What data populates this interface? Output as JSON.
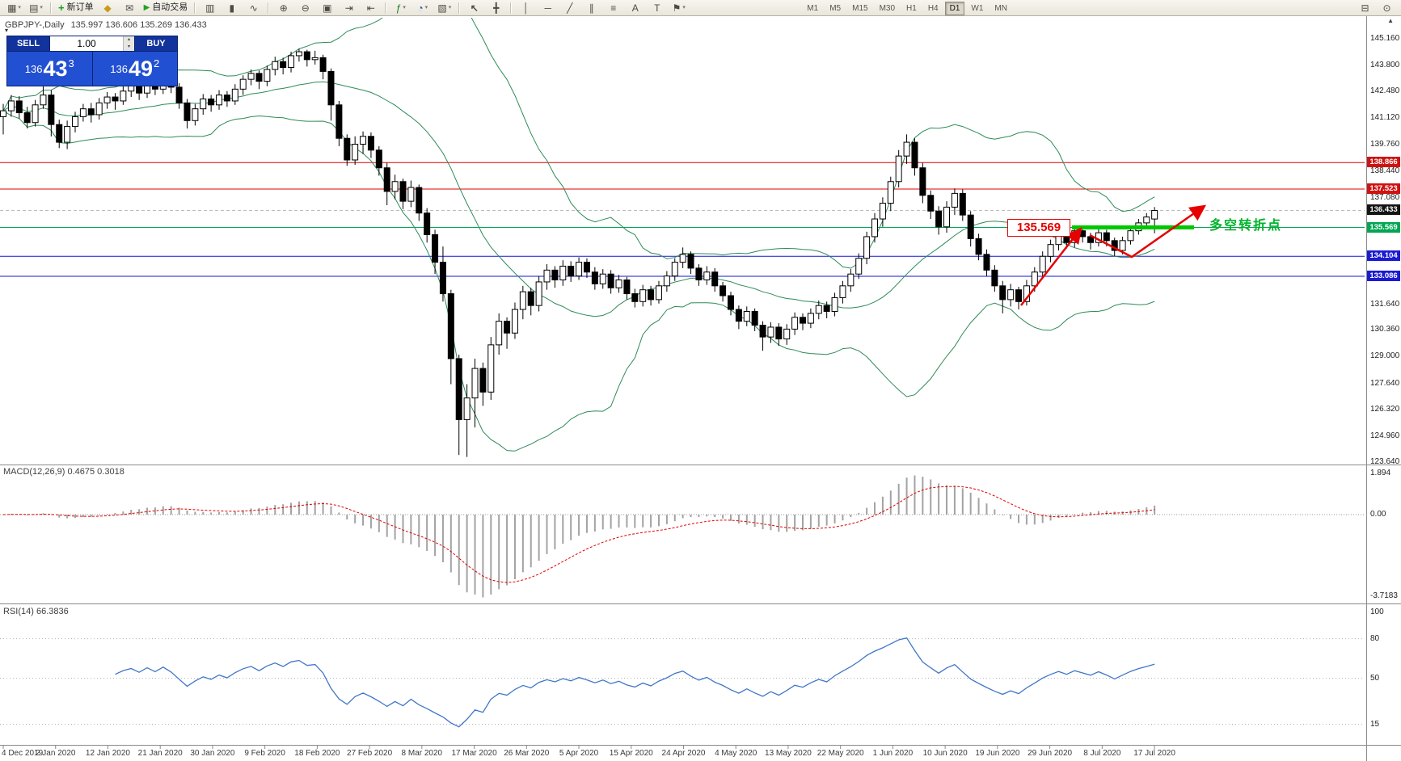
{
  "toolbar": {
    "new_order_label": "新订单",
    "autotrade_label": "自动交易",
    "timeframes": [
      "M1",
      "M5",
      "M15",
      "M30",
      "H1",
      "H4",
      "D1",
      "W1",
      "MN"
    ],
    "active_timeframe": "D1"
  },
  "icons": {
    "new_chart": "▦",
    "profiles": "▤",
    "dropdown": "▾",
    "new_order": "+",
    "market_watch": "◆",
    "alerts": "✉",
    "autotrade_play": "▶",
    "bar_chart": "▥",
    "candle_chart": "▮",
    "line_chart": "∿",
    "zoom_in": "⊕",
    "zoom_out": "⊖",
    "tile_windows": "▣",
    "auto_scroll": "⇥",
    "chart_shift": "⇤",
    "indicators": "ƒ",
    "periods": "◔",
    "templates": "▧",
    "cursor": "↖",
    "crosshair": "╋",
    "vertical_line": "│",
    "horizontal_line": "─",
    "trendline": "╱",
    "channel": "∥",
    "fibonacci": "≡",
    "text_tool": "A",
    "label_tool": "T",
    "shapes": "⚑",
    "print": "⊟",
    "search": "⊙",
    "collapse": "▾",
    "scroll_up": "▲",
    "spin_up": "▴",
    "spin_down": "▾"
  },
  "header": {
    "symbol": "GBPJPY-,Daily",
    "ohlc": "135.997 136.606 135.269 136.433"
  },
  "trade_panel": {
    "sell_label": "SELL",
    "buy_label": "BUY",
    "volume": "1.00",
    "sell_price_main": "136",
    "sell_price_big": "43",
    "sell_price_sup": "3",
    "buy_price_main": "136",
    "buy_price_big": "49",
    "buy_price_sup": "2"
  },
  "price_axis": {
    "labels": [
      "145.160",
      "143.800",
      "142.480",
      "141.120",
      "139.760",
      "138.440",
      "137.080",
      "131.640",
      "130.360",
      "129.000",
      "127.640",
      "126.320",
      "124.960",
      "123.640"
    ],
    "boxes": [
      {
        "label": "138.866",
        "color": "#cf1212"
      },
      {
        "label": "137.523",
        "color": "#cf1212"
      },
      {
        "label": "136.433",
        "color": "#141414"
      },
      {
        "label": "135.569",
        "color": "#00a651"
      },
      {
        "label": "134.104",
        "color": "#1b1bd2"
      },
      {
        "label": "133.086",
        "color": "#1b1bd2"
      }
    ]
  },
  "levels": [
    {
      "price": 138.866,
      "color": "#e00000"
    },
    {
      "price": 137.523,
      "color": "#e00000"
    },
    {
      "price": 135.569,
      "color": "#00a651"
    },
    {
      "price": 134.104,
      "color": "#1515d8"
    },
    {
      "price": 133.086,
      "color": "#1515d8"
    }
  ],
  "macd_panel": {
    "label": "MACD(12,26,9) 0.4675 0.3018",
    "axis": [
      "1.894",
      "0.00",
      "-3.7183"
    ]
  },
  "rsi_panel": {
    "label": "RSI(14) 66.3836",
    "axis": [
      "100",
      "80",
      "50",
      "15"
    ]
  },
  "date_axis": [
    "4 Dec 2019",
    "2 Jan 2020",
    "12 Jan 2020",
    "21 Jan 2020",
    "30 Jan 2020",
    "9 Feb 2020",
    "18 Feb 2020",
    "27 Feb 2020",
    "8 Mar 2020",
    "17 Mar 2020",
    "26 Mar 2020",
    "5 Apr 2020",
    "15 Apr 2020",
    "24 Apr 2020",
    "4 May 2020",
    "13 May 2020",
    "22 May 2020",
    "1 Jun 2020",
    "10 Jun 2020",
    "19 Jun 2020",
    "29 Jun 2020",
    "8 Jul 2020",
    "17 Jul 2020"
  ],
  "annotations": {
    "price_flag": "135.569",
    "note_cn": "多空转折点"
  },
  "chart_data": {
    "type": "candlestick",
    "symbol": "GBPJPY-",
    "timeframe": "Daily",
    "current_price": 136.433,
    "open": 135.997,
    "high": 136.606,
    "low": 135.269,
    "close": 136.433,
    "macd": {
      "fast": 12,
      "slow": 26,
      "signal": 9,
      "value": 0.4675,
      "signal_value": 0.3018
    },
    "rsi": {
      "period": 14,
      "value": 66.3836
    },
    "ohlc": [
      [
        141.2,
        141.85,
        140.3,
        141.5
      ],
      [
        141.5,
        142.3,
        141.2,
        142.0
      ],
      [
        142.0,
        142.25,
        141.1,
        141.4
      ],
      [
        141.4,
        141.7,
        140.6,
        140.9
      ],
      [
        140.9,
        142.05,
        140.7,
        141.8
      ],
      [
        141.8,
        142.8,
        141.6,
        142.3
      ],
      [
        142.3,
        142.55,
        140.2,
        140.8
      ],
      [
        140.8,
        141.05,
        139.6,
        139.9
      ],
      [
        139.9,
        141.0,
        139.55,
        140.7
      ],
      [
        140.7,
        141.45,
        140.4,
        141.2
      ],
      [
        141.2,
        141.85,
        140.95,
        141.6
      ],
      [
        141.6,
        141.9,
        140.9,
        141.3
      ],
      [
        141.3,
        142.15,
        141.05,
        141.9
      ],
      [
        141.9,
        142.45,
        141.6,
        142.2
      ],
      [
        142.2,
        142.4,
        141.55,
        142.0
      ],
      [
        142.0,
        142.75,
        141.8,
        142.5
      ],
      [
        142.5,
        143.05,
        142.2,
        142.8
      ],
      [
        142.8,
        143.0,
        142.05,
        142.4
      ],
      [
        142.4,
        143.25,
        142.15,
        143.0
      ],
      [
        143.0,
        143.3,
        142.3,
        142.6
      ],
      [
        142.6,
        143.45,
        142.35,
        143.2
      ],
      [
        143.2,
        143.35,
        142.4,
        142.7
      ],
      [
        142.7,
        142.9,
        141.6,
        141.9
      ],
      [
        141.9,
        142.1,
        140.6,
        141.0
      ],
      [
        141.0,
        141.85,
        140.75,
        141.6
      ],
      [
        141.6,
        142.35,
        141.3,
        142.1
      ],
      [
        142.1,
        142.3,
        141.45,
        141.8
      ],
      [
        141.8,
        142.55,
        141.55,
        142.3
      ],
      [
        142.3,
        142.5,
        141.7,
        142.0
      ],
      [
        142.0,
        142.85,
        141.8,
        142.6
      ],
      [
        142.6,
        143.3,
        142.3,
        143.1
      ],
      [
        143.1,
        143.6,
        142.8,
        143.4
      ],
      [
        143.4,
        143.55,
        142.6,
        143.0
      ],
      [
        143.0,
        143.8,
        142.75,
        143.6
      ],
      [
        143.6,
        144.25,
        143.3,
        144.0
      ],
      [
        144.0,
        144.2,
        143.35,
        143.7
      ],
      [
        143.7,
        144.5,
        143.45,
        144.3
      ],
      [
        144.3,
        144.65,
        144.0,
        144.5
      ],
      [
        144.5,
        144.6,
        143.75,
        144.1
      ],
      [
        144.1,
        144.55,
        143.85,
        144.2
      ],
      [
        144.2,
        144.35,
        143.1,
        143.5
      ],
      [
        143.5,
        143.65,
        141.0,
        141.8
      ],
      [
        141.8,
        142.0,
        139.7,
        140.1
      ],
      [
        140.1,
        140.3,
        138.7,
        139.0
      ],
      [
        139.0,
        140.2,
        138.75,
        139.8
      ],
      [
        139.8,
        140.45,
        139.3,
        140.2
      ],
      [
        140.2,
        140.4,
        139.1,
        139.5
      ],
      [
        139.5,
        139.7,
        138.2,
        138.6
      ],
      [
        138.6,
        138.85,
        136.7,
        137.4
      ],
      [
        137.4,
        138.25,
        137.0,
        137.9
      ],
      [
        137.9,
        138.05,
        136.5,
        136.9
      ],
      [
        136.9,
        137.95,
        136.6,
        137.6
      ],
      [
        137.6,
        137.75,
        135.9,
        136.3
      ],
      [
        136.3,
        136.55,
        134.8,
        135.2
      ],
      [
        135.2,
        135.45,
        133.2,
        133.8
      ],
      [
        133.8,
        134.6,
        131.8,
        132.2
      ],
      [
        132.2,
        132.4,
        127.6,
        128.9
      ],
      [
        128.9,
        129.1,
        124.0,
        125.8
      ],
      [
        125.8,
        127.6,
        123.9,
        126.9
      ],
      [
        126.9,
        128.9,
        125.4,
        128.4
      ],
      [
        128.4,
        128.7,
        126.5,
        127.2
      ],
      [
        127.2,
        130.0,
        126.8,
        129.6
      ],
      [
        129.6,
        131.2,
        129.1,
        130.8
      ],
      [
        130.8,
        131.0,
        129.4,
        130.2
      ],
      [
        130.2,
        131.75,
        129.9,
        131.4
      ],
      [
        131.4,
        132.6,
        130.9,
        132.3
      ],
      [
        132.3,
        132.5,
        131.1,
        131.6
      ],
      [
        131.6,
        133.1,
        131.3,
        132.8
      ],
      [
        132.8,
        133.7,
        132.4,
        133.4
      ],
      [
        133.4,
        133.6,
        132.5,
        132.9
      ],
      [
        132.9,
        133.9,
        132.6,
        133.6
      ],
      [
        133.6,
        133.85,
        132.8,
        133.1
      ],
      [
        133.1,
        134.05,
        132.9,
        133.8
      ],
      [
        133.8,
        134.0,
        133.0,
        133.3
      ],
      [
        133.3,
        133.55,
        132.4,
        132.7
      ],
      [
        132.7,
        133.45,
        132.45,
        133.2
      ],
      [
        133.2,
        133.4,
        132.2,
        132.5
      ],
      [
        132.5,
        133.15,
        132.25,
        132.9
      ],
      [
        132.9,
        133.05,
        131.9,
        132.2
      ],
      [
        132.2,
        132.45,
        131.5,
        131.8
      ],
      [
        131.8,
        132.65,
        131.55,
        132.4
      ],
      [
        132.4,
        132.6,
        131.6,
        131.9
      ],
      [
        131.9,
        132.85,
        131.7,
        132.6
      ],
      [
        132.6,
        133.35,
        132.3,
        133.1
      ],
      [
        133.1,
        134.0,
        132.85,
        133.8
      ],
      [
        133.8,
        134.55,
        133.5,
        134.2
      ],
      [
        134.2,
        134.35,
        133.2,
        133.5
      ],
      [
        133.5,
        133.7,
        132.6,
        132.9
      ],
      [
        132.9,
        133.6,
        132.65,
        133.3
      ],
      [
        133.3,
        133.5,
        132.3,
        132.6
      ],
      [
        132.6,
        132.8,
        131.8,
        132.1
      ],
      [
        132.1,
        132.3,
        131.1,
        131.4
      ],
      [
        131.4,
        131.6,
        130.4,
        130.8
      ],
      [
        130.8,
        131.55,
        130.55,
        131.3
      ],
      [
        131.3,
        131.45,
        130.3,
        130.6
      ],
      [
        130.6,
        130.8,
        129.3,
        130.0
      ],
      [
        130.0,
        130.75,
        129.7,
        130.5
      ],
      [
        130.5,
        130.7,
        129.55,
        129.9
      ],
      [
        129.9,
        130.65,
        129.6,
        130.4
      ],
      [
        130.4,
        131.25,
        130.1,
        131.0
      ],
      [
        131.0,
        131.2,
        130.35,
        130.7
      ],
      [
        130.7,
        131.45,
        130.45,
        131.2
      ],
      [
        131.2,
        131.85,
        130.9,
        131.6
      ],
      [
        131.6,
        131.8,
        130.95,
        131.3
      ],
      [
        131.3,
        132.25,
        131.05,
        132.0
      ],
      [
        132.0,
        132.85,
        131.7,
        132.6
      ],
      [
        132.6,
        133.45,
        132.3,
        133.2
      ],
      [
        133.2,
        134.25,
        132.95,
        134.0
      ],
      [
        134.0,
        135.35,
        133.7,
        135.1
      ],
      [
        135.1,
        136.3,
        134.8,
        136.0
      ],
      [
        136.0,
        137.1,
        135.6,
        136.8
      ],
      [
        136.8,
        138.15,
        136.4,
        137.9
      ],
      [
        137.9,
        139.5,
        137.6,
        139.2
      ],
      [
        139.2,
        140.3,
        138.8,
        139.9
      ],
      [
        139.9,
        140.1,
        138.2,
        138.6
      ],
      [
        138.6,
        138.85,
        136.8,
        137.2
      ],
      [
        137.2,
        137.45,
        136.0,
        136.4
      ],
      [
        136.4,
        136.65,
        135.2,
        135.6
      ],
      [
        135.6,
        136.9,
        135.3,
        136.6
      ],
      [
        136.6,
        137.55,
        136.2,
        137.3
      ],
      [
        137.3,
        137.5,
        135.9,
        136.2
      ],
      [
        136.2,
        136.4,
        134.6,
        135.0
      ],
      [
        135.0,
        135.25,
        133.9,
        134.2
      ],
      [
        134.2,
        134.45,
        133.1,
        133.4
      ],
      [
        133.4,
        133.65,
        132.3,
        132.6
      ],
      [
        132.6,
        132.85,
        131.2,
        131.9
      ],
      [
        131.9,
        132.7,
        131.55,
        132.4
      ],
      [
        132.4,
        132.55,
        131.4,
        131.8
      ],
      [
        131.8,
        132.9,
        131.6,
        132.6
      ],
      [
        132.6,
        133.55,
        132.3,
        133.3
      ],
      [
        133.3,
        134.35,
        133.05,
        134.1
      ],
      [
        134.1,
        134.95,
        133.8,
        134.7
      ],
      [
        134.7,
        135.45,
        134.4,
        135.2
      ],
      [
        135.2,
        135.4,
        134.5,
        134.8
      ],
      [
        134.8,
        135.65,
        134.55,
        135.4
      ],
      [
        135.4,
        135.6,
        134.8,
        135.1
      ],
      [
        135.1,
        135.3,
        134.45,
        134.8
      ],
      [
        134.8,
        135.55,
        134.6,
        135.3
      ],
      [
        135.3,
        135.45,
        134.6,
        134.9
      ],
      [
        134.9,
        135.05,
        134.1,
        134.4
      ],
      [
        134.4,
        135.1,
        134.2,
        134.9
      ],
      [
        134.9,
        135.6,
        134.7,
        135.4
      ],
      [
        135.4,
        136.0,
        135.2,
        135.8
      ],
      [
        135.8,
        136.3,
        135.55,
        136.1
      ],
      [
        135.997,
        136.606,
        135.269,
        136.433
      ]
    ]
  }
}
